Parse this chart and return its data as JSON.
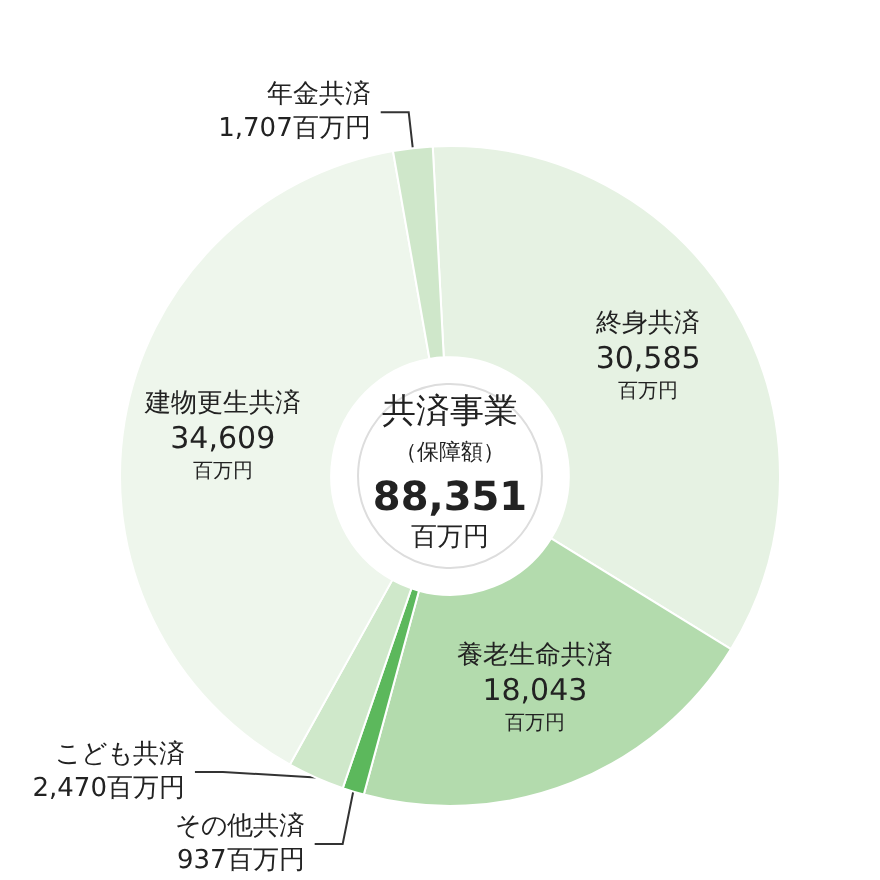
{
  "chart_data": {
    "type": "donut",
    "title": "共済事業",
    "subtitle": "（保障額）",
    "annotations": [
      "88,351",
      "百万円"
    ],
    "categories": [
      "終身共済",
      "養老生命共済",
      "その他共済",
      "こども共済",
      "建物更生共済",
      "年金共済"
    ],
    "values": [
      30585,
      18043,
      937,
      2470,
      34609,
      1707
    ],
    "value_labels": [
      "30,585百万円",
      "18,043百万円",
      "937百万円",
      "2,470百万円",
      "34,609百万円",
      "1,707百万円"
    ],
    "colors": [
      "#e6f2e3",
      "#b3dbad",
      "#5cb85c",
      "#cfe8ca",
      "#eef6ec",
      "#cfe7ca"
    ],
    "legend": false
  }
}
